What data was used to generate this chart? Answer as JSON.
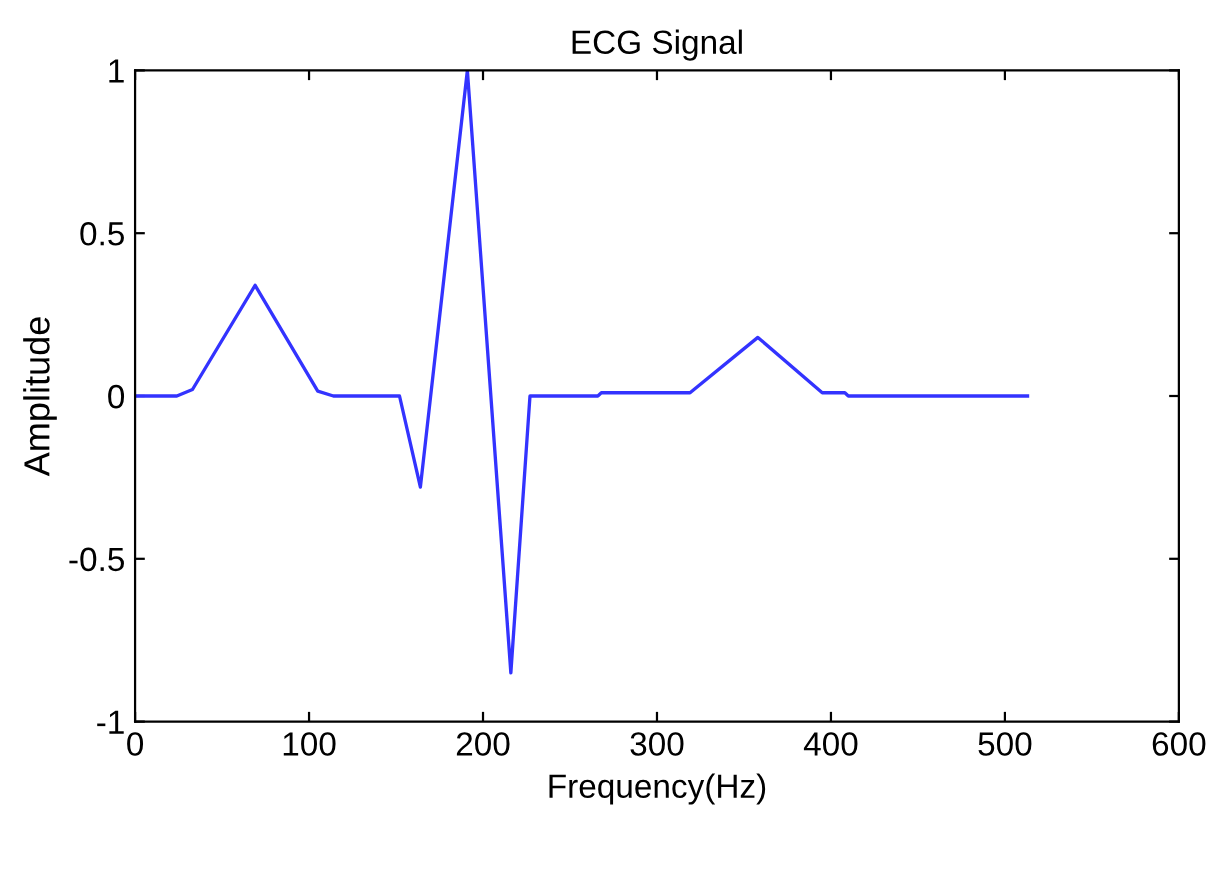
{
  "chart_data": {
    "type": "line",
    "title": "ECG Signal",
    "xlabel": "Frequency(Hz)",
    "ylabel": "Amplitude",
    "series": [
      {
        "color": "#3333ff",
        "x": [
          0,
          24,
          33,
          69,
          105,
          114,
          152,
          164,
          191,
          216,
          227,
          266,
          268,
          319,
          358,
          395,
          408,
          410,
          513
        ],
        "values": [
          0,
          0,
          0.02,
          0.34,
          0.015,
          0,
          0,
          -0.28,
          1.0,
          -0.85,
          0,
          0,
          0.01,
          0.01,
          0.18,
          0.01,
          0.01,
          0,
          0
        ]
      }
    ],
    "xlim": [
      0,
      600
    ],
    "xticks": [
      0,
      100,
      200,
      300,
      400,
      500,
      600
    ],
    "ylim": [
      -1,
      1
    ],
    "yticks": [
      -1,
      -0.5,
      0,
      0.5,
      1
    ],
    "grid": false
  }
}
